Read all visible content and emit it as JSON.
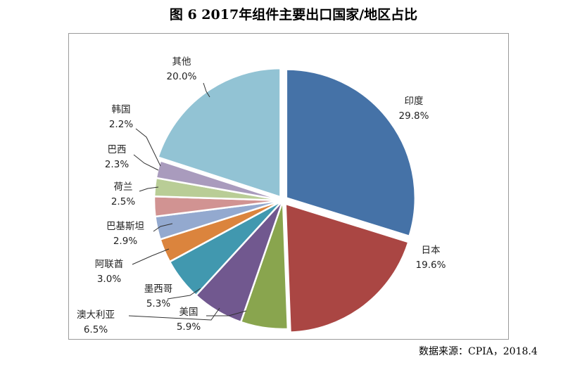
{
  "title": "图  6 2017年组件主要出口国家/地区占比",
  "source": "数据来源：CPIA，2018.4",
  "chart_data": {
    "type": "pie",
    "title": "图  6 2017年组件主要出口国家/地区占比",
    "legend": "none",
    "slices": [
      {
        "name": "印度",
        "value": 29.8,
        "label": "29.8%",
        "color": "#4572a7"
      },
      {
        "name": "日本",
        "value": 19.6,
        "label": "19.6%",
        "color": "#aa4643"
      },
      {
        "name": "美国",
        "value": 5.9,
        "label": "5.9%",
        "color": "#89a54e"
      },
      {
        "name": "澳大利亚",
        "value": 6.5,
        "label": "6.5%",
        "color": "#71588f"
      },
      {
        "name": "墨西哥",
        "value": 5.3,
        "label": "5.3%",
        "color": "#4198af"
      },
      {
        "name": "阿联酋",
        "value": 3.0,
        "label": "3.0%",
        "color": "#db843d"
      },
      {
        "name": "巴基斯坦",
        "value": 2.9,
        "label": "2.9%",
        "color": "#93a9cf"
      },
      {
        "name": "荷兰",
        "value": 2.5,
        "label": "2.5%",
        "color": "#d19392"
      },
      {
        "name": "巴西",
        "value": 2.3,
        "label": "2.3%",
        "color": "#b9cd96"
      },
      {
        "name": "韩国",
        "value": 2.2,
        "label": "2.2%",
        "color": "#a99bbd"
      },
      {
        "name": "其他",
        "value": 20.0,
        "label": "20.0%",
        "color": "#92c3d4"
      }
    ]
  }
}
